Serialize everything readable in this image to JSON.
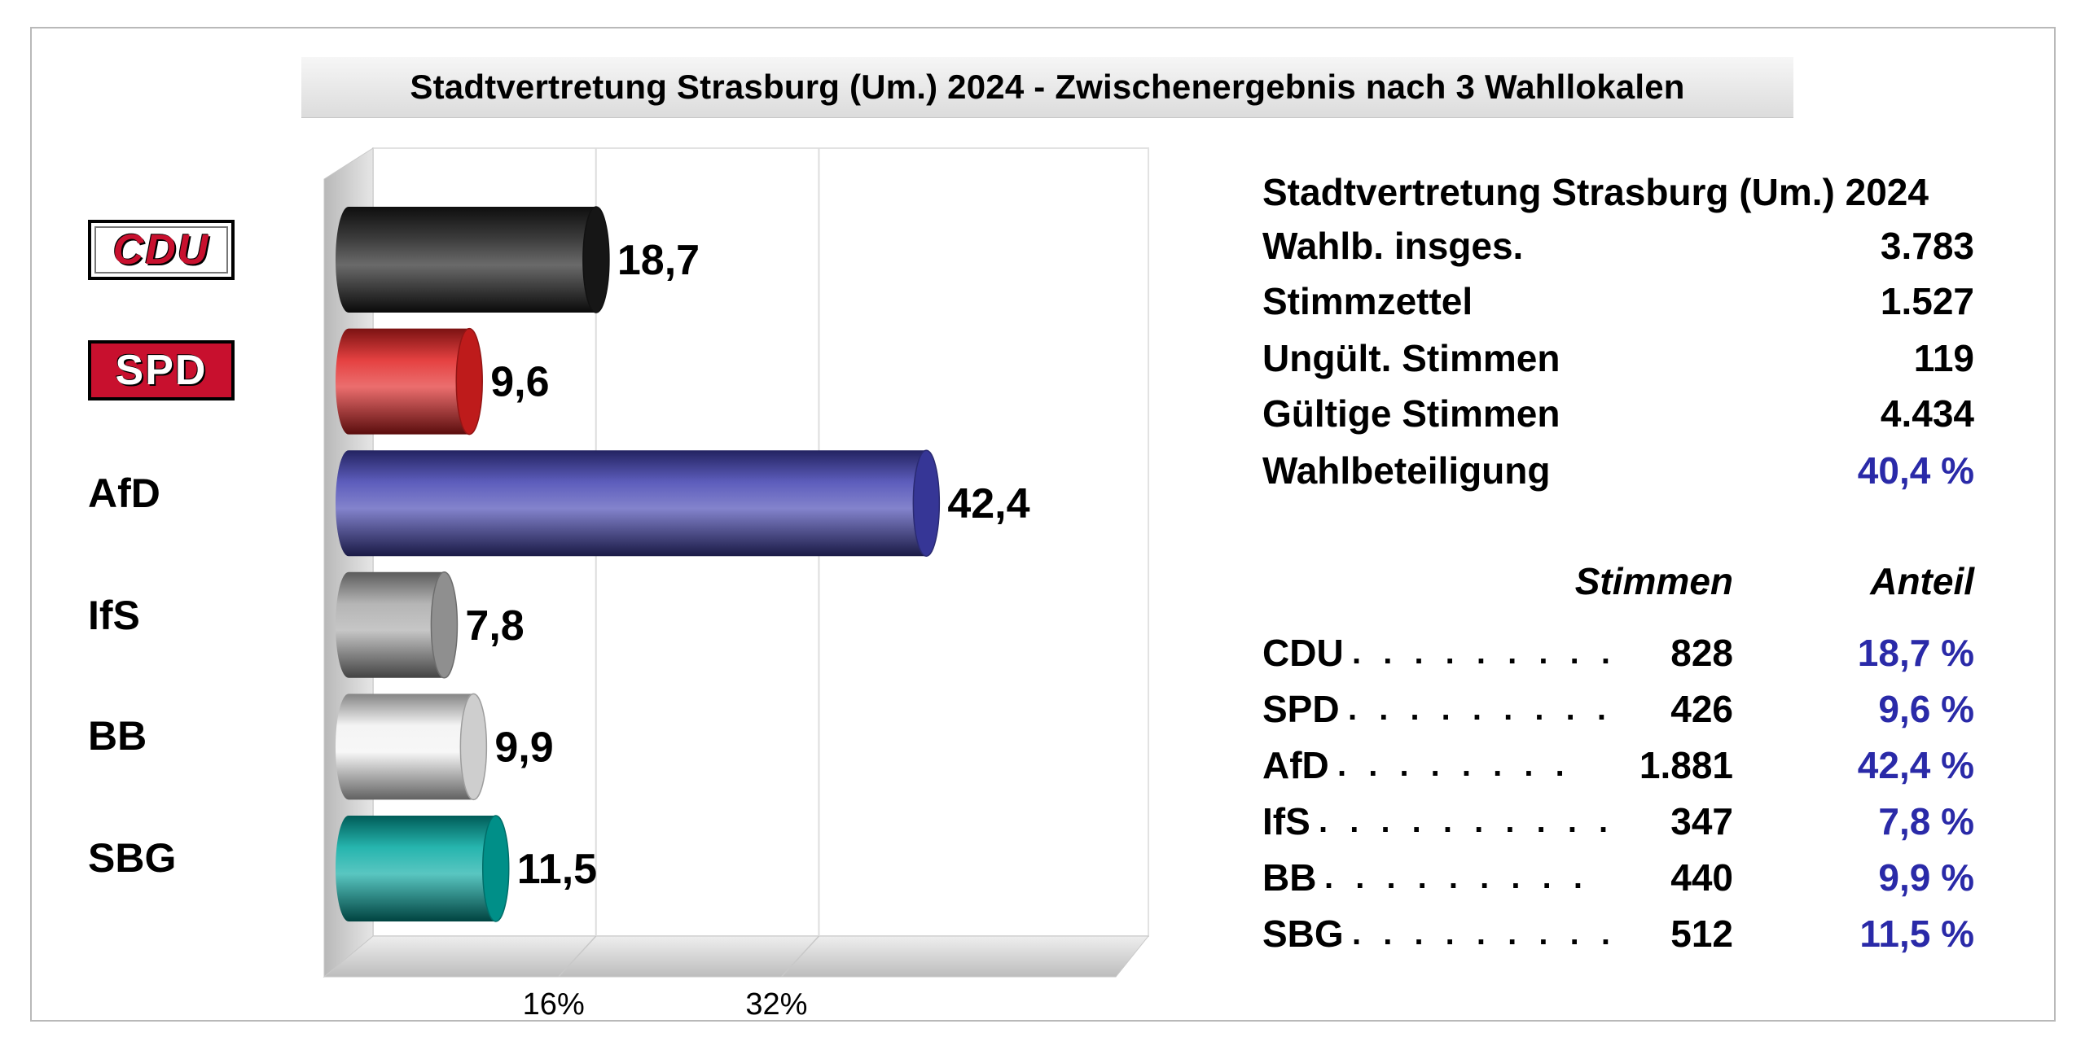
{
  "title": "Stadtvertretung Strasburg (Um.) 2024 - Zwischenergebnis nach 3 Wahllokalen",
  "chart_data": {
    "type": "bar",
    "orientation": "horizontal",
    "categories": [
      "CDU",
      "SPD",
      "AfD",
      "IfS",
      "BB",
      "SBG"
    ],
    "values": [
      18.7,
      9.6,
      42.4,
      7.8,
      9.9,
      11.5
    ],
    "value_labels": [
      "18,7",
      "9,6",
      "42,4",
      "7,8",
      "9,9",
      "11,5"
    ],
    "colors": [
      "#1a1a1a",
      "#e02020",
      "#4040b0",
      "#a8a8a8",
      "#f2f2f2",
      "#00a8a0"
    ],
    "xlim": [
      0,
      56
    ],
    "x_ticks": [
      16,
      32
    ],
    "x_tick_labels": [
      "16%",
      "32%"
    ],
    "grid": true
  },
  "logos": {
    "cdu": "CDU",
    "spd": "SPD"
  },
  "info": {
    "heading": "Stadtvertretung Strasburg (Um.) 2024",
    "rows": [
      {
        "label": "Wahlb. insges.",
        "value": "3.783"
      },
      {
        "label": "Stimmzettel",
        "value": "1.527"
      },
      {
        "label": "Ungült. Stimmen",
        "value": "119"
      },
      {
        "label": "Gültige Stimmen",
        "value": "4.434"
      },
      {
        "label": "Wahlbeteiligung",
        "value": "40,4 %"
      }
    ],
    "col_votes": "Stimmen",
    "col_share": "Anteil",
    "results": [
      {
        "party": "CDU",
        "dots": ". . . . . . . . .",
        "votes": "828",
        "share": "18,7 %"
      },
      {
        "party": "SPD",
        "dots": ". . . . . . . . .",
        "votes": "426",
        "share": "9,6 %"
      },
      {
        "party": "AfD",
        "dots": ". . . . . . . .",
        "votes": "1.881",
        "share": "42,4 %"
      },
      {
        "party": "IfS",
        "dots": ". . . . . . . . . .",
        "votes": "347",
        "share": "7,8 %"
      },
      {
        "party": "BB",
        "dots": ". . . . . . . . .",
        "votes": "440",
        "share": "9,9 %"
      },
      {
        "party": "SBG",
        "dots": ". . . . . . . . .",
        "votes": "512",
        "share": "11,5 %"
      }
    ]
  }
}
